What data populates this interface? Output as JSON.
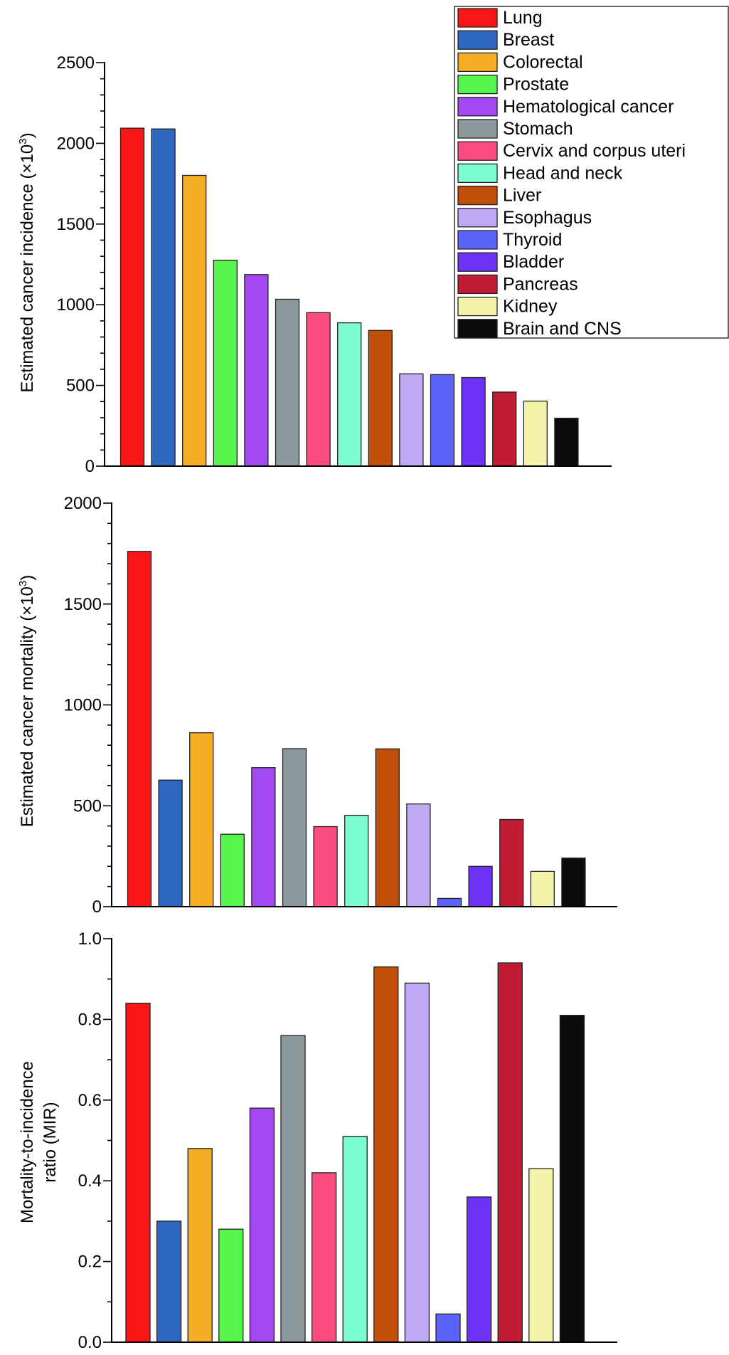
{
  "chart_data": [
    {
      "type": "bar",
      "categories": [
        "Lung",
        "Breast",
        "Colorectal",
        "Prostate",
        "Hematological cancer",
        "Stomach",
        "Cervix and corpus uteri",
        "Head and neck",
        "Liver",
        "Esophagus",
        "Thyroid",
        "Bladder",
        "Pancreas",
        "Kidney",
        "Brain and CNS"
      ],
      "values": [
        2094,
        2089,
        1801,
        1276,
        1187,
        1034,
        951,
        888,
        841,
        572,
        567,
        549,
        459,
        403,
        297
      ],
      "ylabel": "Estimated cancer incidence (×10",
      "ylabel_sup": "3",
      "ylabel_end": ")",
      "ylim": [
        0,
        2500
      ],
      "yticks": [
        "0",
        "500",
        "1000",
        "1500",
        "2000",
        "2500"
      ],
      "legend": "top-right",
      "grid": false
    },
    {
      "type": "bar",
      "categories": [
        "Lung",
        "Breast",
        "Colorectal",
        "Prostate",
        "Hematological cancer",
        "Stomach",
        "Cervix and corpus uteri",
        "Head and neck",
        "Liver",
        "Esophagus",
        "Thyroid",
        "Bladder",
        "Pancreas",
        "Kidney",
        "Brain and CNS"
      ],
      "values": [
        1761,
        627,
        862,
        359,
        689,
        783,
        397,
        453,
        782,
        509,
        41,
        200,
        432,
        175,
        241
      ],
      "ylabel": "Estimated cancer mortality (×10",
      "ylabel_sup": "3",
      "ylabel_end": ")",
      "ylim": [
        0,
        2000
      ],
      "yticks": [
        "0",
        "500",
        "1000",
        "1500",
        "2000"
      ],
      "grid": false
    },
    {
      "type": "bar",
      "categories": [
        "Lung",
        "Breast",
        "Colorectal",
        "Prostate",
        "Hematological cancer",
        "Stomach",
        "Cervix and corpus uteri",
        "Head and neck",
        "Liver",
        "Esophagus",
        "Thyroid",
        "Bladder",
        "Pancreas",
        "Kidney",
        "Brain and CNS"
      ],
      "values": [
        0.84,
        0.3,
        0.48,
        0.28,
        0.58,
        0.76,
        0.42,
        0.51,
        0.93,
        0.89,
        0.07,
        0.36,
        0.94,
        0.43,
        0.81
      ],
      "ylabel_lines": [
        "Mortality-to-incidence",
        "ratio (MIR)"
      ],
      "ylim": [
        0,
        1.0
      ],
      "yticks": [
        "0.0",
        "0.2",
        "0.4",
        "0.6",
        "0.8",
        "1.0"
      ],
      "grid": false
    }
  ],
  "legend_items": [
    {
      "label": "Lung",
      "color": "#f91616"
    },
    {
      "label": "Breast",
      "color": "#2f67bf"
    },
    {
      "label": "Colorectal",
      "color": "#f6ae26"
    },
    {
      "label": "Prostate",
      "color": "#55f54b"
    },
    {
      "label": "Hematological cancer",
      "color": "#a349f4"
    },
    {
      "label": "Stomach",
      "color": "#8d9a9d"
    },
    {
      "label": "Cervix and corpus uteri",
      "color": "#fc4c80"
    },
    {
      "label": "Head and neck",
      "color": "#7dfbd1"
    },
    {
      "label": "Liver",
      "color": "#c24f08"
    },
    {
      "label": "Esophagus",
      "color": "#c0aaf6"
    },
    {
      "label": "Thyroid",
      "color": "#5b63fb"
    },
    {
      "label": "Bladder",
      "color": "#6c32f6"
    },
    {
      "label": "Pancreas",
      "color": "#c01c33"
    },
    {
      "label": "Kidney",
      "color": "#f3f4aa"
    },
    {
      "label": "Brain and CNS",
      "color": "#0b0b0b"
    }
  ]
}
